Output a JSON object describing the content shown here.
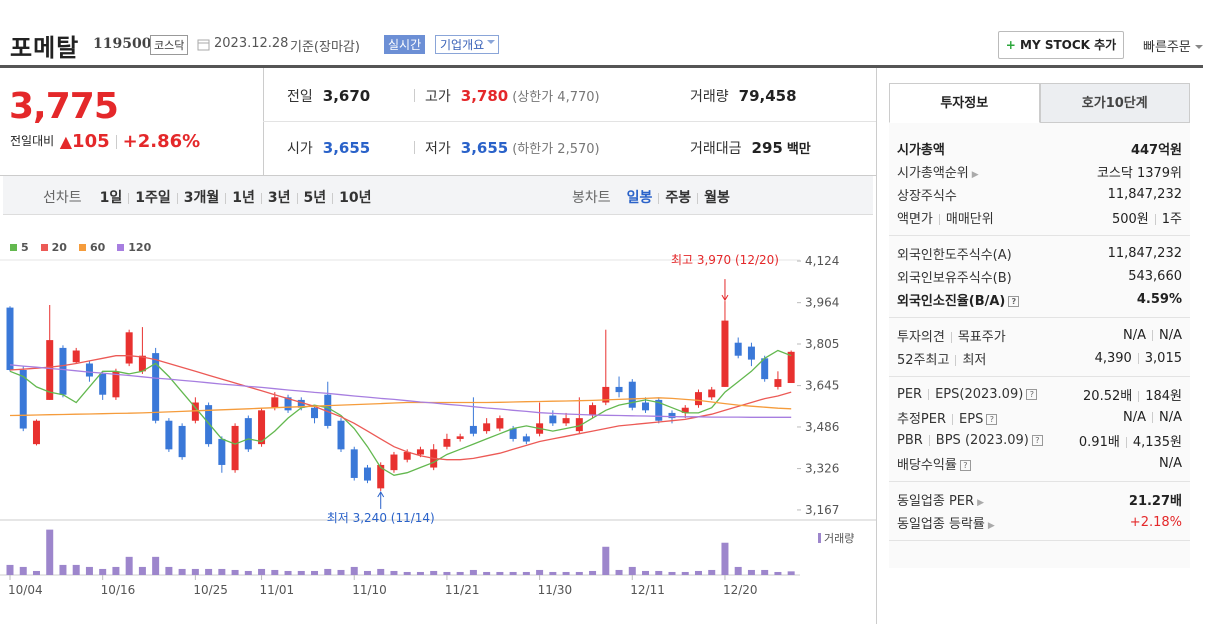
{
  "header": {
    "name": "포메탈",
    "code": "119500",
    "market": "코스닥",
    "date": "2023.12.28",
    "basis": "기준(장마감)",
    "realtime": "실시간",
    "overview": "기업개요",
    "mystock": "MY STOCK 추가",
    "quick_order": "빠른주문"
  },
  "price": {
    "current": "3,775",
    "change_label": "전일대비",
    "change": "105",
    "rate": "+2.86%"
  },
  "quote": [
    [
      {
        "label": "전일",
        "value": "3,670",
        "color": "#222222"
      },
      {
        "label": "고가",
        "value": "3,780",
        "color": "#e4282a",
        "note": "(상한가 4,770)"
      },
      {
        "label": "거래량",
        "value": "79,458",
        "color": "#222222"
      }
    ],
    [
      {
        "label": "시가",
        "value": "3,655",
        "color": "#2a62c9"
      },
      {
        "label": "저가",
        "value": "3,655",
        "color": "#2a62c9",
        "note": "(하한가 2,570)"
      },
      {
        "label": "거래대금",
        "value": "295",
        "unit": "백만",
        "color": "#222222"
      }
    ]
  ],
  "chart_tabs": {
    "line_label": "선차트",
    "line_periods": [
      "1일",
      "1주일",
      "3개월",
      "1년",
      "3년",
      "5년",
      "10년"
    ],
    "candle_label": "봉차트",
    "candle_periods": [
      "일봉",
      "주봉",
      "월봉"
    ],
    "selected_candle": 0
  },
  "chart_data": {
    "type": "candlestick",
    "categories": [
      "10/04",
      null,
      null,
      null,
      null,
      null,
      null,
      "10/16",
      null,
      null,
      null,
      null,
      null,
      null,
      "10/25",
      null,
      null,
      null,
      null,
      "11/01",
      null,
      null,
      null,
      null,
      null,
      null,
      "11/10",
      null,
      null,
      null,
      null,
      null,
      null,
      "11/21",
      null,
      null,
      null,
      null,
      null,
      null,
      "11/30",
      null,
      null,
      null,
      null,
      null,
      null,
      "12/11",
      null,
      null,
      null,
      null,
      null,
      null,
      "12/20",
      null,
      null,
      null,
      null,
      null
    ],
    "open": [
      3945,
      3705,
      3420,
      3590,
      3790,
      3735,
      3730,
      3690,
      3600,
      3730,
      3700,
      3770,
      3510,
      3490,
      3510,
      3570,
      3440,
      3320,
      3520,
      3420,
      3560,
      3600,
      3590,
      3560,
      3610,
      3510,
      3400,
      3330,
      3250,
      3320,
      3360,
      3380,
      3330,
      3410,
      3440,
      3490,
      3470,
      3480,
      3480,
      3450,
      3460,
      3530,
      3500,
      3470,
      3530,
      3580,
      3640,
      3660,
      3580,
      3590,
      3540,
      3540,
      3570,
      3600,
      3640,
      3810,
      3795,
      3750,
      3640,
      3655
    ],
    "high": [
      3950,
      3720,
      3515,
      3955,
      3800,
      3790,
      3740,
      3700,
      3710,
      3860,
      3870,
      3790,
      3520,
      3500,
      3600,
      3580,
      3450,
      3500,
      3530,
      3560,
      3620,
      3610,
      3600,
      3570,
      3660,
      3520,
      3410,
      3340,
      3350,
      3390,
      3400,
      3410,
      3420,
      3460,
      3460,
      3600,
      3520,
      3530,
      3490,
      3460,
      3580,
      3550,
      3540,
      3600,
      3580,
      3860,
      3680,
      3670,
      3600,
      3600,
      3550,
      3570,
      3630,
      3640,
      3970,
      3830,
      3810,
      3760,
      3700,
      3780
    ],
    "low": [
      3700,
      3470,
      3415,
      3590,
      3600,
      3730,
      3660,
      3590,
      3590,
      3720,
      3690,
      3500,
      3390,
      3360,
      3500,
      3410,
      3310,
      3310,
      3390,
      3410,
      3550,
      3540,
      3550,
      3500,
      3480,
      3390,
      3280,
      3270,
      3240,
      3310,
      3350,
      3370,
      3320,
      3400,
      3430,
      3450,
      3460,
      3470,
      3430,
      3420,
      3450,
      3490,
      3490,
      3460,
      3520,
      3570,
      3600,
      3550,
      3540,
      3500,
      3500,
      3520,
      3560,
      3590,
      3640,
      3750,
      3720,
      3660,
      3630,
      3655
    ],
    "close": [
      3705,
      3480,
      3510,
      3820,
      3610,
      3780,
      3680,
      3610,
      3700,
      3850,
      3760,
      3510,
      3400,
      3370,
      3580,
      3420,
      3340,
      3490,
      3400,
      3550,
      3600,
      3550,
      3560,
      3520,
      3490,
      3400,
      3290,
      3280,
      3340,
      3380,
      3390,
      3400,
      3400,
      3440,
      3450,
      3460,
      3500,
      3520,
      3440,
      3430,
      3500,
      3500,
      3520,
      3520,
      3570,
      3640,
      3620,
      3560,
      3550,
      3510,
      3520,
      3560,
      3620,
      3630,
      3895,
      3760,
      3745,
      3670,
      3670,
      3775
    ],
    "up_color": "#e8312f",
    "down_color": "#3a78d8",
    "series": [
      {
        "name": "5",
        "color": "#63b84f",
        "values": [
          3700,
          3680,
          3640,
          3620,
          3610,
          3580,
          3640,
          3700,
          3700,
          3690,
          3700,
          3730,
          3680,
          3620,
          3560,
          3500,
          3440,
          3420,
          3440,
          3430,
          3470,
          3520,
          3560,
          3570,
          3560,
          3530,
          3480,
          3410,
          3330,
          3300,
          3310,
          3330,
          3350,
          3380,
          3400,
          3420,
          3440,
          3460,
          3480,
          3490,
          3480,
          3470,
          3480,
          3490,
          3520,
          3550,
          3570,
          3580,
          3590,
          3580,
          3560,
          3540,
          3540,
          3560,
          3620,
          3660,
          3700,
          3750,
          3780,
          3760
        ]
      },
      {
        "name": "20",
        "color": "#ec5a56",
        "values": [
          3705,
          3708,
          3712,
          3716,
          3722,
          3730,
          3740,
          3750,
          3760,
          3760,
          3755,
          3745,
          3730,
          3715,
          3700,
          3685,
          3670,
          3655,
          3640,
          3625,
          3610,
          3595,
          3580,
          3565,
          3545,
          3525,
          3500,
          3470,
          3440,
          3410,
          3390,
          3375,
          3365,
          3360,
          3360,
          3365,
          3375,
          3385,
          3400,
          3415,
          3430,
          3440,
          3450,
          3460,
          3470,
          3480,
          3490,
          3495,
          3500,
          3505,
          3510,
          3515,
          3525,
          3535,
          3550,
          3565,
          3580,
          3595,
          3605,
          3620
        ]
      },
      {
        "name": "60",
        "color": "#f59c3c",
        "values": [
          3530,
          3531,
          3532,
          3533,
          3534,
          3535,
          3536,
          3537,
          3538,
          3539,
          3540,
          3542,
          3544,
          3546,
          3548,
          3550,
          3552,
          3554,
          3556,
          3558,
          3560,
          3562,
          3564,
          3566,
          3568,
          3570,
          3572,
          3574,
          3576,
          3578,
          3580,
          3580,
          3580,
          3580,
          3580,
          3580,
          3580,
          3581,
          3582,
          3583,
          3584,
          3585,
          3586,
          3587,
          3588,
          3590,
          3592,
          3594,
          3596,
          3598,
          3596,
          3592,
          3588,
          3582,
          3576,
          3570,
          3566,
          3562,
          3558,
          3556
        ]
      },
      {
        "name": "120",
        "color": "#a77ee0",
        "values": [
          3725,
          3720,
          3716,
          3711,
          3707,
          3702,
          3697,
          3693,
          3688,
          3684,
          3679,
          3674,
          3670,
          3665,
          3661,
          3656,
          3651,
          3647,
          3642,
          3638,
          3633,
          3628,
          3624,
          3619,
          3615,
          3610,
          3605,
          3601,
          3596,
          3592,
          3587,
          3582,
          3578,
          3573,
          3569,
          3564,
          3559,
          3555,
          3550,
          3546,
          3541,
          3538,
          3536,
          3534,
          3532,
          3531,
          3530,
          3529,
          3528,
          3527,
          3526,
          3525,
          3525,
          3524,
          3524,
          3524,
          3523,
          3523,
          3523,
          3523
        ]
      }
    ],
    "ylim": [
      3136,
      4128
    ],
    "yticks": [
      {
        "value": 4124,
        "label": "4,124"
      },
      {
        "value": 3964,
        "label": "3,964"
      },
      {
        "value": 3805,
        "label": "3,805"
      },
      {
        "value": 3645,
        "label": "3,645"
      },
      {
        "value": 3486,
        "label": "3,486"
      },
      {
        "value": 3326,
        "label": "3,326"
      },
      {
        "value": 3167,
        "label": "3,167"
      }
    ],
    "high_label": "최고 3,970 (12/20)",
    "low_label": "최저 3,240 (11/14)",
    "volume_name": "거래량",
    "volume_color": "#9d86cc",
    "volume": [
      220000,
      176000,
      88000,
      990000,
      220000,
      220000,
      176000,
      132000,
      176000,
      396000,
      176000,
      396000,
      176000,
      132000,
      132000,
      132000,
      132000,
      110000,
      88000,
      132000,
      110000,
      88000,
      88000,
      88000,
      132000,
      110000,
      176000,
      88000,
      132000,
      88000,
      66000,
      66000,
      88000,
      66000,
      66000,
      110000,
      66000,
      66000,
      66000,
      66000,
      110000,
      66000,
      66000,
      66000,
      88000,
      616000,
      110000,
      176000,
      88000,
      88000,
      66000,
      66000,
      88000,
      110000,
      704000,
      176000,
      110000,
      110000,
      66000,
      79458
    ],
    "volume_ylim": [
      0,
      1200000
    ],
    "grid": false
  },
  "sidebar": {
    "tabs": [
      "투자정보",
      "호가10단계"
    ],
    "groups": [
      [
        {
          "label": [
            "시가총액"
          ],
          "value": [
            "447억원"
          ],
          "bold": true
        },
        {
          "label": [
            "시가총액순위"
          ],
          "value": [
            "코스닥 1379위"
          ],
          "link": true
        },
        {
          "label": [
            "상장주식수"
          ],
          "value": [
            "11,847,232"
          ]
        },
        {
          "label": [
            "액면가",
            "매매단위"
          ],
          "value": [
            "500원",
            "1주"
          ]
        }
      ],
      [
        {
          "label": [
            "외국인한도주식수(A)"
          ],
          "value": [
            "11,847,232"
          ]
        },
        {
          "label": [
            "외국인보유주식수(B)"
          ],
          "value": [
            "543,660"
          ]
        },
        {
          "label": [
            "외국인소진율(B/A)"
          ],
          "value": [
            "4.59%"
          ],
          "bold": true,
          "help": true
        }
      ],
      [
        {
          "label": [
            "투자의견",
            "목표주가"
          ],
          "value": [
            "N/A",
            "N/A"
          ]
        },
        {
          "label": [
            "52주최고",
            "최저"
          ],
          "value": [
            "4,390",
            "3,015"
          ]
        }
      ],
      [
        {
          "label": [
            "PER",
            "EPS(2023.09)"
          ],
          "value": [
            "20.52배",
            "184원"
          ],
          "help": true
        },
        {
          "label": [
            "추정PER",
            "EPS"
          ],
          "value": [
            "N/A",
            "N/A"
          ],
          "help": true
        },
        {
          "label": [
            "PBR",
            "BPS (2023.09)"
          ],
          "value": [
            "0.91배",
            "4,135원"
          ],
          "help": true
        },
        {
          "label": [
            "배당수익률"
          ],
          "value": [
            "N/A"
          ],
          "help": true
        }
      ],
      [
        {
          "label": [
            "동일업종 PER"
          ],
          "value": [
            "21.27배"
          ],
          "link": true,
          "bold_value": true
        },
        {
          "label": [
            "동일업종 등락률"
          ],
          "value": [
            "+2.18%"
          ],
          "link": true,
          "color": "#e4282a"
        }
      ]
    ]
  }
}
